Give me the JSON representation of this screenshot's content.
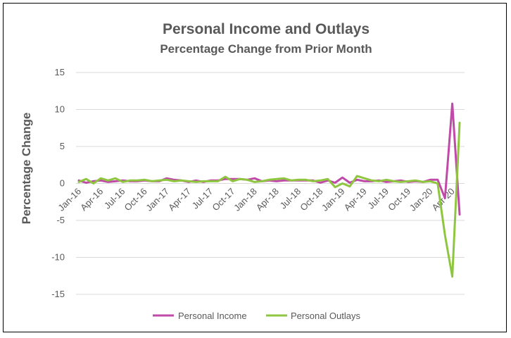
{
  "chart_data": {
    "type": "line",
    "title": "Personal Income and Outlays",
    "subtitle": "Percentage Change from Prior Month",
    "xlabel": "",
    "ylabel": "Percentage Change",
    "ylim": [
      -15,
      15
    ],
    "yticks": [
      15,
      10,
      5,
      0,
      -5,
      -10,
      -15
    ],
    "grid": true,
    "legend_position": "bottom",
    "x": [
      "Jan-16",
      "Feb-16",
      "Mar-16",
      "Apr-16",
      "May-16",
      "Jun-16",
      "Jul-16",
      "Aug-16",
      "Sep-16",
      "Oct-16",
      "Nov-16",
      "Dec-16",
      "Jan-17",
      "Feb-17",
      "Mar-17",
      "Apr-17",
      "May-17",
      "Jun-17",
      "Jul-17",
      "Aug-17",
      "Sep-17",
      "Oct-17",
      "Nov-17",
      "Dec-17",
      "Jan-18",
      "Feb-18",
      "Mar-18",
      "Apr-18",
      "May-18",
      "Jun-18",
      "Jul-18",
      "Aug-18",
      "Sep-18",
      "Oct-18",
      "Nov-18",
      "Dec-18",
      "Jan-19",
      "Feb-19",
      "Mar-19",
      "Apr-19",
      "May-19",
      "Jun-19",
      "Jul-19",
      "Aug-19",
      "Sep-19",
      "Oct-19",
      "Nov-19",
      "Dec-19",
      "Jan-20",
      "Feb-20",
      "Mar-20",
      "Apr-20",
      "May-20"
    ],
    "x_tick_labels": [
      "Jan-16",
      "Apr-16",
      "Jul-16",
      "Oct-16",
      "Jan-17",
      "Apr-17",
      "Jul-17",
      "Oct-17",
      "Jan-18",
      "Apr-18",
      "Jul-18",
      "Oct-18",
      "Jan-19",
      "Apr-19",
      "Jul-19",
      "Oct-19",
      "Jan-20",
      "Apr-20"
    ],
    "series": [
      {
        "name": "Personal Income",
        "color": "#c04aa8",
        "values": [
          0.4,
          0.1,
          0.3,
          0.4,
          0.2,
          0.3,
          0.4,
          0.3,
          0.3,
          0.4,
          0.3,
          0.3,
          0.7,
          0.5,
          0.4,
          0.2,
          0.4,
          0.2,
          0.4,
          0.4,
          0.6,
          0.6,
          0.6,
          0.5,
          0.7,
          0.3,
          0.4,
          0.3,
          0.4,
          0.4,
          0.4,
          0.4,
          0.4,
          0.1,
          0.4,
          0.1,
          0.8,
          0.1,
          0.5,
          0.3,
          0.3,
          0.4,
          0.2,
          0.3,
          0.4,
          0.2,
          0.3,
          0.2,
          0.5,
          0.5,
          -2.0,
          10.8,
          -4.2
        ]
      },
      {
        "name": "Personal Outlays",
        "color": "#8fc640",
        "values": [
          0.2,
          0.6,
          0.0,
          0.7,
          0.4,
          0.7,
          0.2,
          0.4,
          0.4,
          0.5,
          0.3,
          0.4,
          0.5,
          0.3,
          0.4,
          0.3,
          0.2,
          0.3,
          0.3,
          0.3,
          0.9,
          0.3,
          0.6,
          0.5,
          0.2,
          0.3,
          0.5,
          0.6,
          0.7,
          0.4,
          0.5,
          0.5,
          0.3,
          0.4,
          0.6,
          -0.5,
          0.0,
          -0.4,
          1.0,
          0.7,
          0.4,
          0.3,
          0.5,
          0.3,
          0.2,
          0.3,
          0.4,
          0.2,
          0.3,
          0.0,
          -7.0,
          -12.6,
          8.2
        ]
      }
    ]
  }
}
